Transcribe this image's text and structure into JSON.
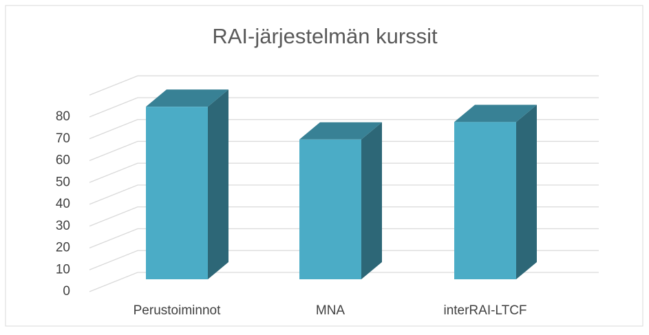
{
  "chart_data": {
    "type": "bar3d",
    "title": "RAI-järjestelmän kurssit",
    "categories": [
      "Perustoiminnot",
      "MNA",
      "interRAI-LTCF"
    ],
    "values": [
      79,
      64,
      72
    ],
    "color": "#4bacc6",
    "ylim": [
      0,
      90
    ],
    "yticks": [
      0,
      10,
      20,
      30,
      40,
      50,
      60,
      70,
      80
    ],
    "grid": true
  }
}
